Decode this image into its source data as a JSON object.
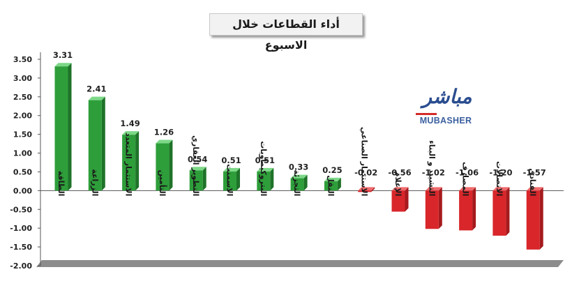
{
  "chart_data": {
    "type": "bar",
    "title": "أداء القطاعات خلال الاسبوع",
    "categories": [
      "الطاقة",
      "الزراعة",
      "الاستثمار المتعدد",
      "التأمين",
      "التطوير العقاري",
      "الاسمنت",
      "البتروكيماويات",
      "التجزئة",
      "النقل",
      "الاستثمار الصناعي",
      "الإعلام",
      "التشييد و البناء",
      "المصارف",
      "الاتصالات",
      "الفنادق"
    ],
    "values": [
      3.31,
      2.41,
      1.49,
      1.26,
      0.54,
      0.51,
      0.51,
      0.33,
      0.25,
      -0.02,
      -0.56,
      -1.02,
      -1.06,
      -1.2,
      -1.57
    ],
    "value_labels": [
      "3.31",
      "2.41",
      "1.49",
      "1.26",
      "0.54",
      "0.51",
      "0.51",
      "0.33",
      "0.25",
      "-0.02",
      "-0.56",
      "-1.02",
      "-1.06",
      "-1.20",
      "-1.57"
    ],
    "yticks": [
      "3.50",
      "3.00",
      "2.50",
      "2.00",
      "1.50",
      "1.00",
      "0.50",
      "0.00",
      "-0.50",
      "-1.00",
      "-1.50",
      "-2.00"
    ],
    "ylim": [
      -2,
      3.5
    ],
    "positive_color": "#2e9e3a",
    "negative_color": "#d8262a",
    "grid": false
  },
  "logo": {
    "arabic": "مباشر",
    "english": "MUBASHER"
  }
}
